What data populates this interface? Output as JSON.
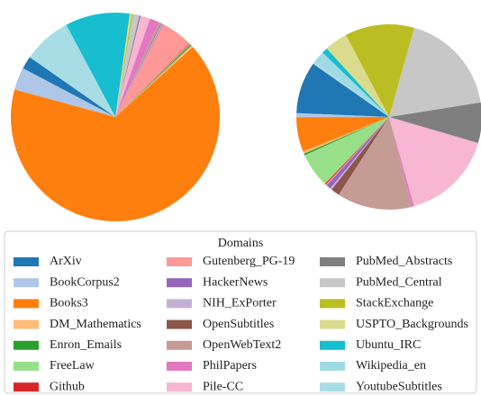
{
  "legend": {
    "title": "Domains"
  },
  "chart_data": [
    {
      "type": "pie",
      "categories": [
        "ArXiv",
        "BookCorpus2",
        "Books3",
        "DM_Mathematics",
        "Enron_Emails",
        "FreeLaw",
        "Github",
        "Gutenberg_PG-19",
        "HackerNews",
        "NIH_ExPorter",
        "OpenSubtitles",
        "OpenWebText2",
        "PhilPapers",
        "Pile-CC",
        "PubMed_Abstracts",
        "PubMed_Central",
        "StackExchange",
        "USPTO_Backgrounds",
        "Ubuntu_IRC",
        "Wikipedia_en",
        "YoutubeSubtitles"
      ],
      "values": [
        2,
        3.5,
        66,
        0.3,
        0.2,
        0.1,
        0.1,
        5,
        0.1,
        0.2,
        0.1,
        0.3,
        1.5,
        1.5,
        0.2,
        1,
        0.2,
        0.3,
        10,
        0.5,
        7
      ],
      "colors": [
        "#1f77b4",
        "#aec7e8",
        "#ff7f0e",
        "#ffbb78",
        "#2ca02c",
        "#98df8a",
        "#d62728",
        "#ff9896",
        "#9467bd",
        "#c5b0d5",
        "#8c564b",
        "#c49c94",
        "#e377c2",
        "#f7b6d2",
        "#7f7f7f",
        "#c7c7c7",
        "#bcbd22",
        "#dbdb8d",
        "#17becf",
        "#9edae5",
        "#a9dde6"
      ]
    },
    {
      "type": "pie",
      "categories": [
        "ArXiv",
        "BookCorpus2",
        "Books3",
        "DM_Mathematics",
        "Enron_Emails",
        "FreeLaw",
        "Github",
        "Gutenberg_PG-19",
        "HackerNews",
        "NIH_ExPorter",
        "OpenSubtitles",
        "OpenWebText2",
        "PhilPapers",
        "Pile-CC",
        "PubMed_Abstracts",
        "PubMed_Central",
        "StackExchange",
        "USPTO_Backgrounds",
        "Ubuntu_IRC",
        "Wikipedia_en",
        "YoutubeSubtitles"
      ],
      "values": [
        9,
        0.7,
        6,
        0.4,
        0.3,
        6,
        0.2,
        0.2,
        0.8,
        0.3,
        1.5,
        13,
        0.4,
        16,
        7,
        18,
        12,
        4,
        1,
        2,
        0.5
      ],
      "colors": [
        "#1f77b4",
        "#aec7e8",
        "#ff7f0e",
        "#ffbb78",
        "#2ca02c",
        "#98df8a",
        "#d62728",
        "#ff9896",
        "#9467bd",
        "#c5b0d5",
        "#8c564b",
        "#c49c94",
        "#e377c2",
        "#f7b6d2",
        "#7f7f7f",
        "#c7c7c7",
        "#bcbd22",
        "#dbdb8d",
        "#17becf",
        "#9edae5",
        "#a9dde6"
      ]
    }
  ]
}
